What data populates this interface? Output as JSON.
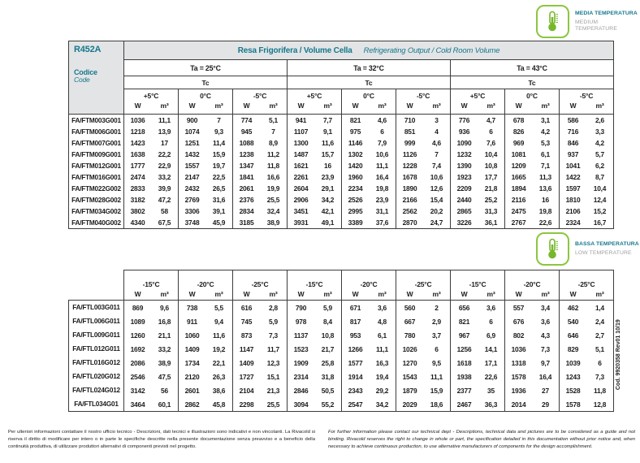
{
  "badges": {
    "medium": {
      "title": "MEDIA TEMPERATURA",
      "subtitle": "MEDIUM TEMPERATURE"
    },
    "low": {
      "title": "BASSA TEMPERATURA",
      "subtitle": "LOW TEMPERATURE"
    }
  },
  "medium_table": {
    "refrigerant": "R452A",
    "code_label_it": "Codice",
    "code_label_en": "Code",
    "title_it": "Resa Frigorifera / Volume Cella",
    "title_en": "Refrigerating Output / Cold Room Volume",
    "ta_labels": [
      "Ta = 25°C",
      "Ta = 32°C",
      "Ta = 43°C"
    ],
    "tc_label": "Tc",
    "temp_labels": [
      "+5°C",
      "0°C",
      "-5°C",
      "+5°C",
      "0°C",
      "-5°C",
      "+5°C",
      "0°C",
      "-5°C"
    ],
    "unit_w": "W",
    "unit_m3": "m³",
    "rows": [
      {
        "code": "FA/FTM003G001",
        "values": [
          "1036",
          "11,1",
          "900",
          "7",
          "774",
          "5,1",
          "941",
          "7,7",
          "821",
          "4,6",
          "710",
          "3",
          "776",
          "4,7",
          "678",
          "3,1",
          "586",
          "2,6"
        ]
      },
      {
        "code": "FA/FTM006G001",
        "values": [
          "1218",
          "13,9",
          "1074",
          "9,3",
          "945",
          "7",
          "1107",
          "9,1",
          "975",
          "6",
          "851",
          "4",
          "936",
          "6",
          "826",
          "4,2",
          "716",
          "3,3"
        ]
      },
      {
        "code": "FA/FTM007G001",
        "values": [
          "1423",
          "17",
          "1251",
          "11,4",
          "1088",
          "8,9",
          "1300",
          "11,6",
          "1146",
          "7,9",
          "999",
          "4,6",
          "1090",
          "7,6",
          "969",
          "5,3",
          "846",
          "4,2"
        ]
      },
      {
        "code": "FA/FTM009G001",
        "values": [
          "1638",
          "22,2",
          "1432",
          "15,9",
          "1238",
          "11,2",
          "1487",
          "15,7",
          "1302",
          "10,6",
          "1126",
          "7",
          "1232",
          "10,4",
          "1081",
          "6,1",
          "937",
          "5,7"
        ]
      },
      {
        "code": "FA/FTM012G001",
        "values": [
          "1777",
          "22,9",
          "1557",
          "19,7",
          "1347",
          "11,8",
          "1621",
          "16",
          "1420",
          "11,1",
          "1228",
          "7,4",
          "1390",
          "10,8",
          "1209",
          "7,1",
          "1041",
          "6,2"
        ]
      },
      {
        "code": "FA/FTM016G001",
        "values": [
          "2474",
          "33,2",
          "2147",
          "22,5",
          "1841",
          "16,6",
          "2261",
          "23,9",
          "1960",
          "16,4",
          "1678",
          "10,6",
          "1923",
          "17,7",
          "1665",
          "11,3",
          "1422",
          "8,7"
        ]
      },
      {
        "code": "FA/FTM022G002",
        "values": [
          "2833",
          "39,9",
          "2432",
          "26,5",
          "2061",
          "19,9",
          "2604",
          "29,1",
          "2234",
          "19,8",
          "1890",
          "12,6",
          "2209",
          "21,8",
          "1894",
          "13,6",
          "1597",
          "10,4"
        ]
      },
      {
        "code": "FA/FTM028G002",
        "values": [
          "3182",
          "47,2",
          "2769",
          "31,6",
          "2376",
          "25,5",
          "2906",
          "34,2",
          "2526",
          "23,9",
          "2166",
          "15,4",
          "2440",
          "25,2",
          "2116",
          "16",
          "1810",
          "12,4"
        ]
      },
      {
        "code": "FA/FTM034G002",
        "values": [
          "3802",
          "58",
          "3306",
          "39,1",
          "2834",
          "32,4",
          "3451",
          "42,1",
          "2995",
          "31,1",
          "2562",
          "20,2",
          "2865",
          "31,3",
          "2475",
          "19,8",
          "2106",
          "15,2"
        ]
      },
      {
        "code": "FA/FTM040G002",
        "values": [
          "4340",
          "67,5",
          "3748",
          "45,9",
          "3185",
          "38,9",
          "3931",
          "49,1",
          "3389",
          "37,6",
          "2870",
          "24,7",
          "3226",
          "36,1",
          "2767",
          "22,6",
          "2324",
          "16,7"
        ]
      }
    ]
  },
  "low_table": {
    "temp_labels": [
      "-15°C",
      "-20°C",
      "-25°C",
      "-15°C",
      "-20°C",
      "-25°C",
      "-15°C",
      "-20°C",
      "-25°C"
    ],
    "unit_w": "W",
    "unit_m3": "m³",
    "rows": [
      {
        "code": "FA/FTL003G011",
        "values": [
          "869",
          "9,6",
          "738",
          "5,5",
          "616",
          "2,8",
          "790",
          "5,9",
          "671",
          "3,6",
          "560",
          "2",
          "656",
          "3,6",
          "557",
          "3,4",
          "462",
          "1,4"
        ]
      },
      {
        "code": "FA/FTL006G011",
        "values": [
          "1089",
          "16,8",
          "911",
          "9,4",
          "745",
          "5,9",
          "978",
          "8,4",
          "817",
          "4,8",
          "667",
          "2,9",
          "821",
          "6",
          "676",
          "3,6",
          "540",
          "2,4"
        ]
      },
      {
        "code": "FA/FTL009G011",
        "values": [
          "1260",
          "21,1",
          "1060",
          "11,6",
          "873",
          "7,3",
          "1137",
          "10,8",
          "953",
          "6,1",
          "780",
          "3,7",
          "967",
          "6,9",
          "802",
          "4,3",
          "646",
          "2,7"
        ]
      },
      {
        "code": "FA/FTL012G011",
        "values": [
          "1692",
          "33,2",
          "1409",
          "19,2",
          "1147",
          "11,7",
          "1523",
          "21,7",
          "1266",
          "11,1",
          "1026",
          "6",
          "1256",
          "14,1",
          "1036",
          "7,3",
          "829",
          "5,1"
        ]
      },
      {
        "code": "FA/FTL016G012",
        "values": [
          "2086",
          "38,9",
          "1734",
          "22,1",
          "1409",
          "12,3",
          "1909",
          "25,8",
          "1577",
          "16,3",
          "1270",
          "9,5",
          "1618",
          "17,1",
          "1318",
          "9,7",
          "1039",
          "6"
        ]
      },
      {
        "code": "FA/FTL020G012",
        "values": [
          "2546",
          "47,5",
          "2120",
          "26,3",
          "1727",
          "15,1",
          "2314",
          "31,8",
          "1914",
          "19,4",
          "1543",
          "11,1",
          "1938",
          "22,6",
          "1578",
          "16,4",
          "1243",
          "7,3"
        ]
      },
      {
        "code": "FA/FTL024G012",
        "values": [
          "3142",
          "56",
          "2601",
          "38,6",
          "2104",
          "21,3",
          "2846",
          "50,5",
          "2343",
          "29,2",
          "1879",
          "15,9",
          "2377",
          "35",
          "1936",
          "27",
          "1528",
          "11,8"
        ]
      },
      {
        "code": "FA/FTL034G01",
        "values": [
          "3464",
          "60,1",
          "2862",
          "45,8",
          "2298",
          "25,5",
          "3094",
          "55,2",
          "2547",
          "34,2",
          "2029",
          "18,6",
          "2467",
          "36,3",
          "2014",
          "29",
          "1578",
          "12,8"
        ]
      }
    ]
  },
  "side_code": "Cod. 9920358 Rev01 10/19",
  "footer": {
    "italian": "Per ulteriori informazioni contattare il nostro ufficio tecnico - Descrizioni, dati tecnici e illustrazioni sono indicativi e non vincolanti. La Rivacold si riserva il diritto di modificare per intero o in parte le specifiche descritte nella presente documentazione senza preavviso e a beneficio della continuità produttiva, di utilizzare produttori alternativi di componenti previsti nel progetto.",
    "english": "For further information please contact our technical dept - Descriptions, technical data and pictures are to be considered as a guide and not binding. Rivacold reserves the right to change in whole or part, the specification detailed in this documentation without prior notice and, when necessary to achieve continuous production, to use alternative manufacturers of components for the design accomplishment."
  }
}
